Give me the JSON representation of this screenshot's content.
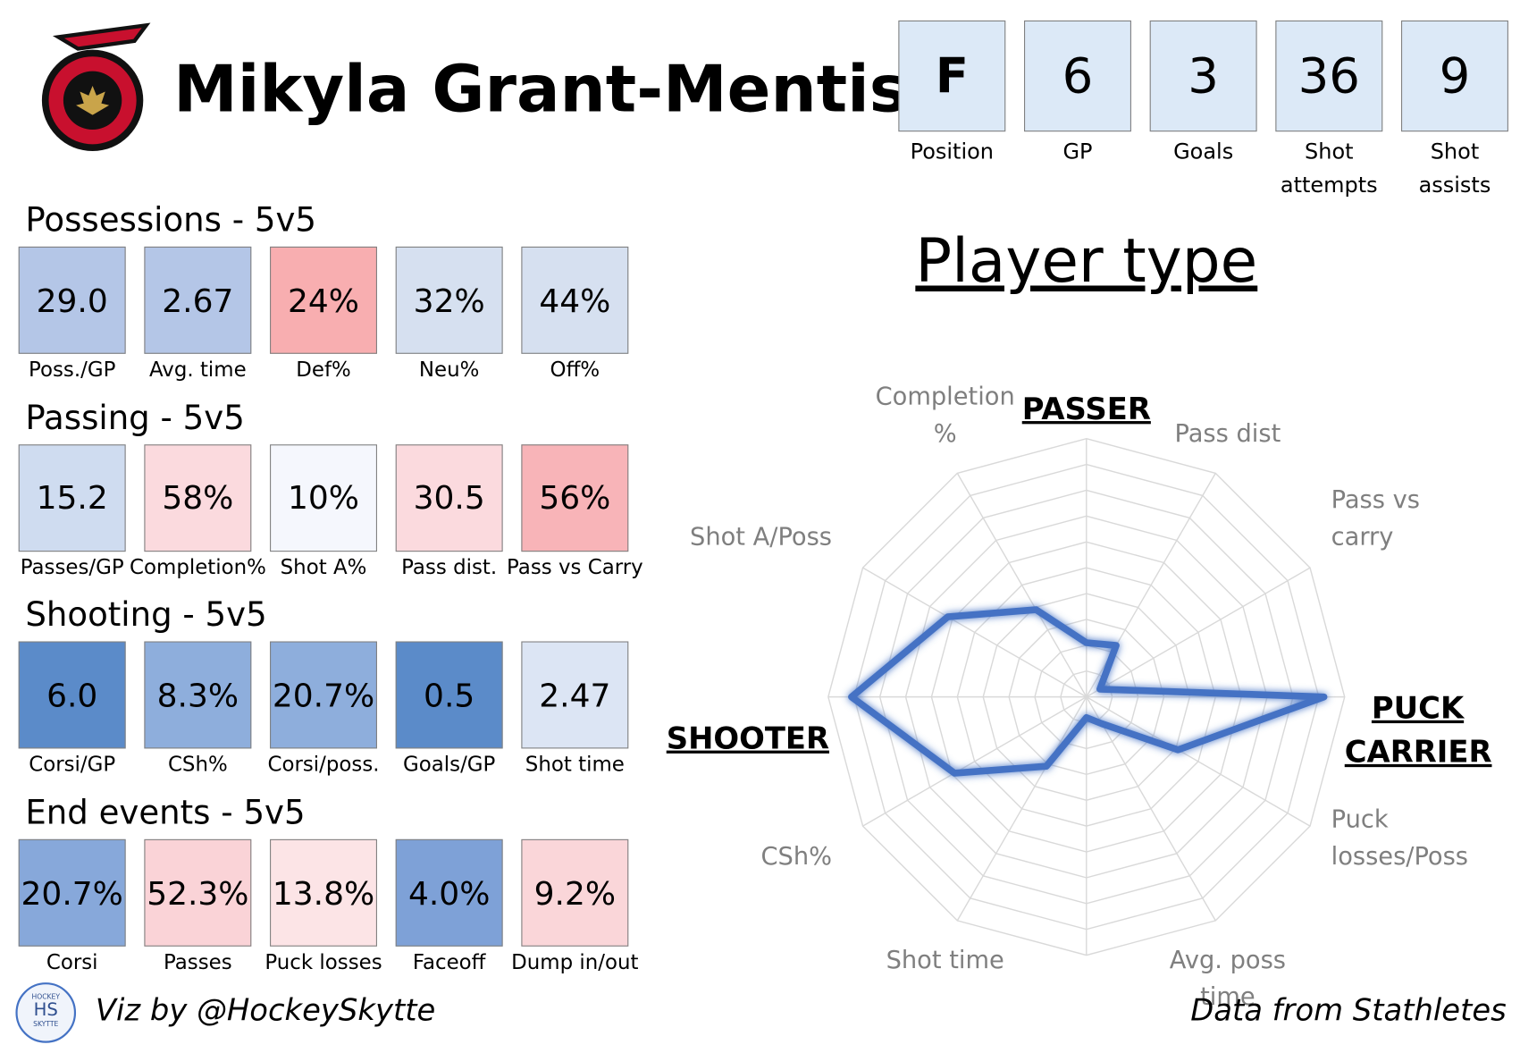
{
  "header": {
    "name": "Mikyla Grant-Mentis",
    "stats": [
      {
        "value": "F",
        "label": "Position"
      },
      {
        "value": "6",
        "label": "GP"
      },
      {
        "value": "3",
        "label": "Goals"
      },
      {
        "value": "36",
        "label": "Shot attempts"
      },
      {
        "value": "9",
        "label": "Shot assists"
      }
    ]
  },
  "sections": [
    {
      "title": "Possessions - 5v5",
      "tiles": [
        {
          "value": "29.0",
          "label": "Poss./GP",
          "color": "#b4c6e7"
        },
        {
          "value": "2.67",
          "label": "Avg. time",
          "color": "#b4c6e7"
        },
        {
          "value": "24%",
          "label": "Def%",
          "color": "#f8aeb0"
        },
        {
          "value": "32%",
          "label": "Neu%",
          "color": "#d6e0f0"
        },
        {
          "value": "44%",
          "label": "Off%",
          "color": "#d6e0f0"
        }
      ]
    },
    {
      "title": "Passing - 5v5",
      "tiles": [
        {
          "value": "15.2",
          "label": "Passes/GP",
          "color": "#cfdcf0"
        },
        {
          "value": "58%",
          "label": "Completion%",
          "color": "#fbdade"
        },
        {
          "value": "10%",
          "label": "Shot A%",
          "color": "#f5f7fd"
        },
        {
          "value": "30.5",
          "label": "Pass dist.",
          "color": "#fbdade"
        },
        {
          "value": "56%",
          "label": "Pass vs Carry",
          "color": "#f8b4b8"
        }
      ]
    },
    {
      "title": "Shooting - 5v5",
      "tiles": [
        {
          "value": "6.0",
          "label": "Corsi/GP",
          "color": "#5b8bc9"
        },
        {
          "value": "8.3%",
          "label": "CSh%",
          "color": "#8eaedc"
        },
        {
          "value": "20.7%",
          "label": "Corsi/poss.",
          "color": "#8eaedc"
        },
        {
          "value": "0.5",
          "label": "Goals/GP",
          "color": "#5b8bc9"
        },
        {
          "value": "2.47",
          "label": "Shot time",
          "color": "#dce5f4"
        }
      ]
    },
    {
      "title": "End events - 5v5",
      "tiles": [
        {
          "value": "20.7%",
          "label": "Corsi",
          "color": "#87a8da"
        },
        {
          "value": "52.3%",
          "label": "Passes",
          "color": "#fad3d7"
        },
        {
          "value": "13.8%",
          "label": "Puck losses",
          "color": "#fce4e6"
        },
        {
          "value": "4.0%",
          "label": "Faceoff",
          "color": "#7ea1d7"
        },
        {
          "value": "9.2%",
          "label": "Dump in/out",
          "color": "#fad6d9"
        }
      ]
    }
  ],
  "chart_data": {
    "type": "radar",
    "title": "Player type",
    "groups": {
      "passer": "PASSER",
      "carrier": "PUCK CARRIER",
      "shooter": "SHOOTER"
    },
    "categories": [
      null,
      "Pass dist",
      "Pass vs carry",
      null,
      "Puck losses/Poss",
      "Avg. poss time",
      null,
      "Shot time",
      "CSh%",
      null,
      "Shot A/Poss",
      "Completion %"
    ],
    "values": [
      2.1,
      2.3,
      0.6,
      9.2,
      4.1,
      1.2,
      0.8,
      3.1,
      5.9,
      9.1,
      6.2,
      3.9
    ],
    "color": "#4472c4",
    "ylim": [
      0,
      10
    ],
    "yticks": [
      1,
      2,
      3,
      4,
      5,
      6,
      7,
      8,
      9,
      10
    ],
    "grid": true
  },
  "footer": {
    "credit": "Viz by @HockeySkytte",
    "source": "Data from Stathletes",
    "logo_top": "HOCKEY",
    "logo_mid": "HS",
    "logo_bottom": "SKYTTE"
  }
}
